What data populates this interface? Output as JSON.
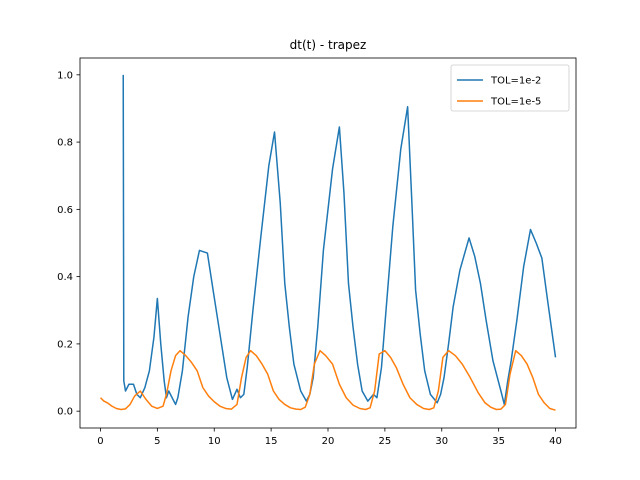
{
  "chart_data": {
    "type": "line",
    "title": "dt(t) - trapez",
    "xlabel": "",
    "ylabel": "",
    "xlim": [
      -1.8,
      41.8
    ],
    "ylim": [
      -0.05,
      1.05
    ],
    "xticks": [
      0,
      5,
      10,
      15,
      20,
      25,
      30,
      35,
      40
    ],
    "yticks": [
      0.0,
      0.2,
      0.4,
      0.6,
      0.8,
      1.0
    ],
    "xtick_labels": [
      "0",
      "5",
      "10",
      "15",
      "20",
      "25",
      "30",
      "35",
      "40"
    ],
    "ytick_labels": [
      "0.0",
      "0.2",
      "0.4",
      "0.6",
      "0.8",
      "1.0"
    ],
    "grid": false,
    "legend_position": "upper right",
    "series": [
      {
        "name": "TOL=1e-2",
        "color": "#1f77b4",
        "x": [
          2.0,
          2.05,
          2.2,
          2.5,
          2.9,
          3.2,
          3.5,
          3.9,
          4.3,
          4.7,
          5.0,
          5.3,
          5.6,
          5.8,
          6.0,
          6.3,
          6.6,
          6.8,
          7.2,
          7.7,
          8.2,
          8.7,
          9.4,
          9.9,
          10.5,
          11.1,
          11.6,
          12.0,
          12.3,
          12.6,
          12.9,
          13.4,
          14.1,
          14.8,
          15.3,
          15.8,
          16.2,
          16.6,
          17.0,
          17.6,
          18.1,
          18.4,
          18.7,
          19.1,
          19.6,
          20.4,
          21.0,
          21.4,
          21.8,
          22.2,
          22.6,
          23.0,
          23.5,
          24.0,
          24.3,
          24.7,
          25.1,
          25.7,
          26.4,
          27.0,
          27.4,
          27.7,
          28.1,
          28.5,
          29.0,
          29.6,
          29.9,
          30.2,
          30.6,
          31.0,
          31.6,
          32.4,
          32.9,
          33.4,
          33.9,
          34.5,
          35.2,
          35.5,
          35.8,
          36.1,
          36.6,
          37.2,
          37.8,
          38.3,
          38.8,
          39.3,
          40.0
        ],
        "y": [
          1.0,
          0.09,
          0.06,
          0.08,
          0.08,
          0.05,
          0.04,
          0.07,
          0.12,
          0.22,
          0.335,
          0.2,
          0.09,
          0.04,
          0.06,
          0.04,
          0.02,
          0.04,
          0.12,
          0.28,
          0.4,
          0.478,
          0.47,
          0.36,
          0.23,
          0.1,
          0.035,
          0.065,
          0.04,
          0.05,
          0.13,
          0.3,
          0.52,
          0.73,
          0.83,
          0.62,
          0.38,
          0.25,
          0.14,
          0.06,
          0.03,
          0.05,
          0.1,
          0.25,
          0.48,
          0.72,
          0.845,
          0.65,
          0.38,
          0.25,
          0.14,
          0.06,
          0.03,
          0.05,
          0.04,
          0.13,
          0.3,
          0.55,
          0.78,
          0.905,
          0.6,
          0.36,
          0.23,
          0.12,
          0.05,
          0.025,
          0.05,
          0.1,
          0.2,
          0.31,
          0.42,
          0.515,
          0.46,
          0.38,
          0.27,
          0.15,
          0.06,
          0.02,
          0.09,
          0.15,
          0.27,
          0.43,
          0.54,
          0.5,
          0.455,
          0.33,
          0.16
        ]
      },
      {
        "name": "TOL=1e-5",
        "color": "#ff7f0e",
        "x": [
          0.0,
          0.3,
          0.6,
          1.0,
          1.4,
          1.8,
          2.2,
          2.6,
          3.0,
          3.5,
          4.0,
          4.5,
          5.0,
          5.5,
          5.8,
          6.2,
          6.6,
          7.0,
          7.5,
          8.0,
          8.5,
          9.0,
          9.5,
          10.0,
          10.5,
          11.0,
          11.5,
          12.0,
          12.4,
          12.8,
          13.2,
          13.7,
          14.2,
          14.7,
          15.2,
          15.7,
          16.2,
          16.7,
          17.2,
          17.6,
          18.0,
          18.4,
          18.8,
          19.3,
          19.8,
          20.4,
          21.0,
          21.6,
          22.2,
          22.8,
          23.3,
          23.7,
          24.1,
          24.5,
          25.0,
          25.5,
          26.0,
          26.6,
          27.2,
          27.8,
          28.4,
          28.9,
          29.3,
          29.7,
          30.1,
          30.6,
          31.2,
          31.8,
          32.5,
          33.2,
          33.8,
          34.3,
          34.8,
          35.2,
          35.6,
          36.0,
          36.5,
          37.0,
          37.5,
          38.0,
          38.5,
          39.0,
          39.5,
          40.0
        ],
        "y": [
          0.04,
          0.03,
          0.025,
          0.015,
          0.008,
          0.005,
          0.007,
          0.02,
          0.045,
          0.06,
          0.035,
          0.015,
          0.008,
          0.015,
          0.05,
          0.12,
          0.165,
          0.18,
          0.165,
          0.145,
          0.12,
          0.07,
          0.045,
          0.028,
          0.015,
          0.008,
          0.006,
          0.02,
          0.1,
          0.16,
          0.18,
          0.165,
          0.14,
          0.11,
          0.06,
          0.035,
          0.02,
          0.01,
          0.006,
          0.005,
          0.012,
          0.05,
          0.14,
          0.18,
          0.165,
          0.14,
          0.08,
          0.04,
          0.018,
          0.008,
          0.005,
          0.01,
          0.06,
          0.17,
          0.18,
          0.16,
          0.13,
          0.08,
          0.04,
          0.02,
          0.008,
          0.005,
          0.01,
          0.06,
          0.16,
          0.18,
          0.165,
          0.14,
          0.1,
          0.055,
          0.025,
          0.012,
          0.005,
          0.006,
          0.02,
          0.11,
          0.18,
          0.165,
          0.14,
          0.1,
          0.05,
          0.025,
          0.008,
          0.003
        ]
      }
    ]
  }
}
